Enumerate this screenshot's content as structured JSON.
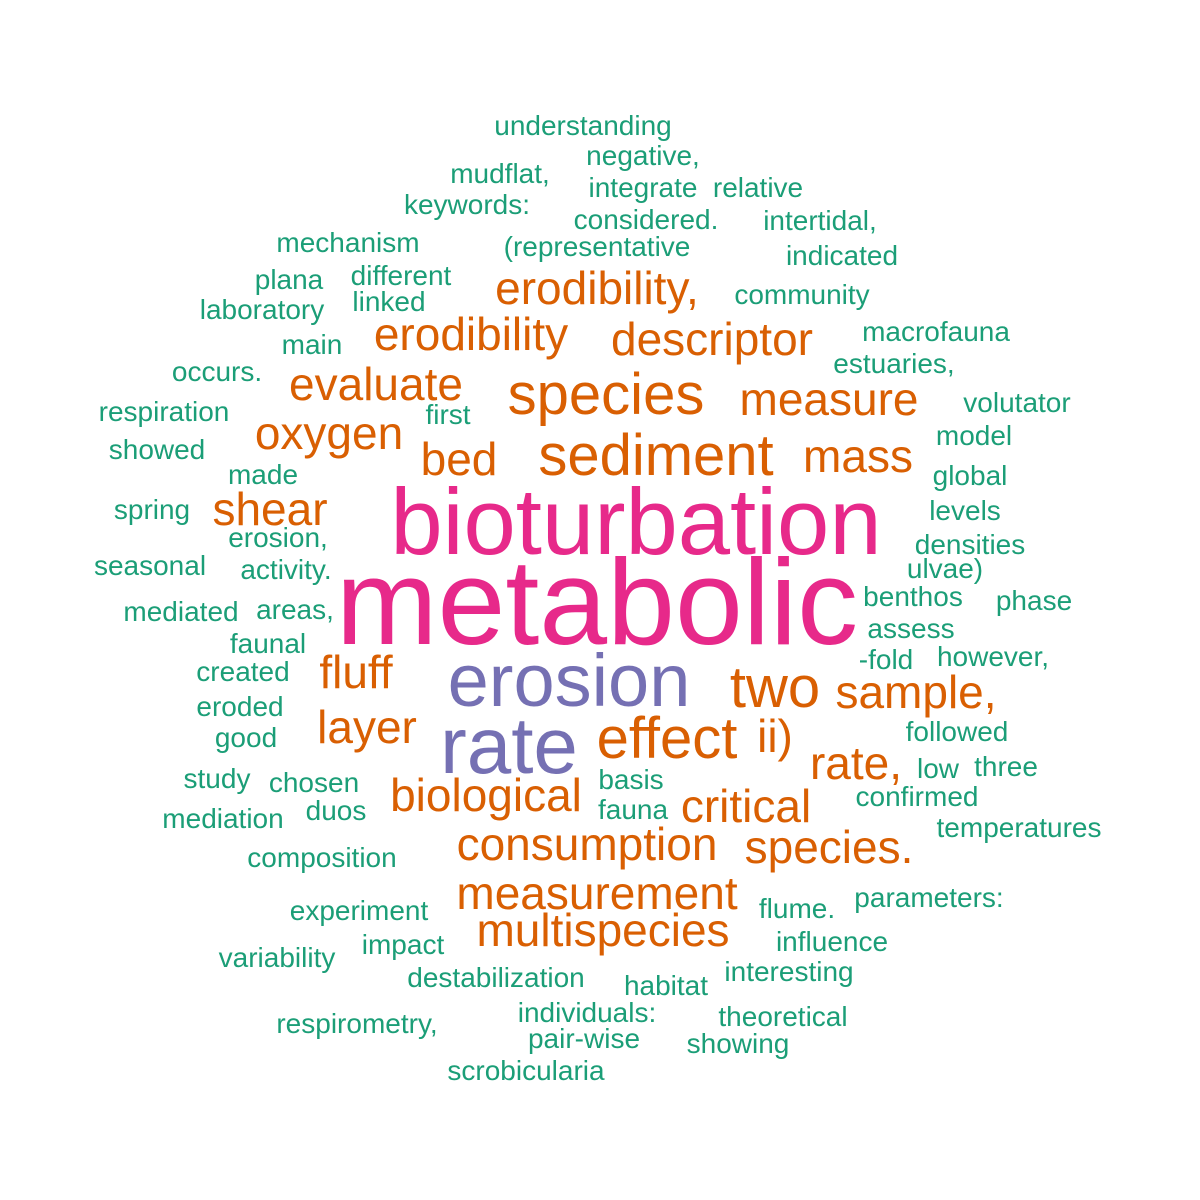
{
  "colors": {
    "tier_small": "#1b9e77",
    "tier_medium": "#d95f02",
    "tier_large": "#7570b3",
    "tier_largest": "#e7298a"
  },
  "words": {
    "understanding": "understanding",
    "negative": "negative,",
    "mudflat": "mudflat,",
    "integrate": "integrate",
    "relative": "relative",
    "keywords": "keywords:",
    "considered": "considered.",
    "intertidal": "intertidal,",
    "mechanism": "mechanism",
    "representative": "(representative",
    "indicated": "indicated",
    "plana": "plana",
    "different": "different",
    "linked": "linked",
    "community": "community",
    "laboratory": "laboratory",
    "macrofauna": "macrofauna",
    "main": "main",
    "estuaries": "estuaries,",
    "occurs": "occurs.",
    "volutator": "volutator",
    "respiration": "respiration",
    "first": "first",
    "model": "model",
    "showed": "showed",
    "made": "made",
    "global": "global",
    "spring": "spring",
    "levels": "levels",
    "erosion_comma": "erosion,",
    "densities": "densities",
    "seasonal": "seasonal",
    "activity": "activity.",
    "ulvae": "ulvae)",
    "benthos": "benthos",
    "phase": "phase",
    "mediated": "mediated",
    "areas": "areas,",
    "assess": "assess",
    "faunal": "faunal",
    "fold": "-fold",
    "however": "however,",
    "created": "created",
    "eroded": "eroded",
    "followed": "followed",
    "good": "good",
    "low": "low",
    "three": "three",
    "study": "study",
    "chosen": "chosen",
    "basis": "basis",
    "confirmed": "confirmed",
    "mediation": "mediation",
    "duos": "duos",
    "fauna": "fauna",
    "temperatures": "temperatures",
    "composition": "composition",
    "experiment": "experiment",
    "flume": "flume.",
    "parameters": "parameters:",
    "impact": "impact",
    "influence": "influence",
    "variability": "variability",
    "destabilization": "destabilization",
    "interesting": "interesting",
    "habitat": "habitat",
    "individuals": "individuals:",
    "theoretical": "theoretical",
    "respirometry": "respirometry,",
    "pair_wise": "pair-wise",
    "showing": "showing",
    "scrobicularia": "scrobicularia",
    "erodibility_comma": "erodibility,",
    "erodibility": "erodibility",
    "descriptor": "descriptor",
    "evaluate": "evaluate",
    "species": "species",
    "measure": "measure",
    "oxygen": "oxygen",
    "bed": "bed",
    "sediment": "sediment",
    "mass": "mass",
    "shear": "shear",
    "fluff": "fluff",
    "two": "two",
    "sample": "sample,",
    "layer": "layer",
    "effect": "effect",
    "ii": "ii)",
    "rate_comma": "rate,",
    "biological": "biological",
    "critical": "critical",
    "consumption": "consumption",
    "species_period": "species.",
    "measurement": "measurement",
    "multispecies": "multispecies",
    "erosion": "erosion",
    "rate": "rate",
    "bioturbation": "bioturbation",
    "metabolic": "metabolic"
  }
}
